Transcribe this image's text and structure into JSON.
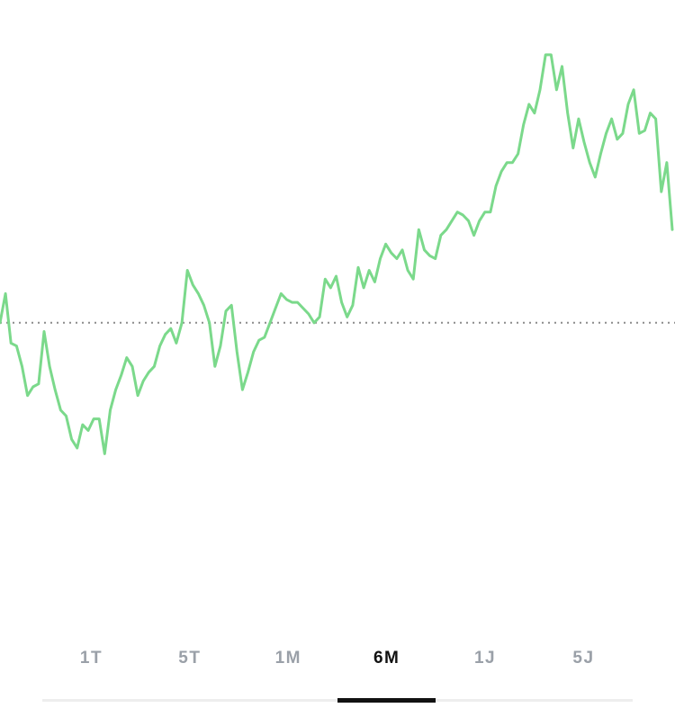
{
  "chart_data": {
    "type": "line",
    "title": "",
    "xlabel": "",
    "ylabel": "",
    "line_color": "#7bd98b",
    "baseline_color": "#8c8c8c",
    "baseline_value": 0,
    "ylim": [
      -60,
      100
    ],
    "values": [
      0,
      10,
      -7,
      -8,
      -15,
      -25,
      -22,
      -21,
      -3,
      -15,
      -23,
      -30,
      -32,
      -40,
      -43,
      -35,
      -37,
      -33,
      -33,
      -45,
      -30,
      -23,
      -18,
      -12,
      -15,
      -25,
      -20,
      -17,
      -15,
      -8,
      -4,
      -2,
      -7,
      0,
      18,
      13,
      10,
      6,
      0,
      -15,
      -8,
      4,
      6,
      -10,
      -23,
      -17,
      -10,
      -6,
      -5,
      0,
      5,
      10,
      8,
      7,
      7,
      5,
      3,
      0,
      2,
      15,
      12,
      16,
      7,
      2,
      6,
      19,
      12,
      18,
      14,
      22,
      27,
      24,
      22,
      25,
      18,
      15,
      32,
      25,
      23,
      22,
      30,
      32,
      35,
      38,
      37,
      35,
      30,
      35,
      38,
      38,
      47,
      52,
      55,
      55,
      58,
      68,
      75,
      72,
      80,
      92,
      92,
      80,
      88,
      72,
      60,
      70,
      62,
      55,
      50,
      58,
      65,
      70,
      63,
      65,
      75,
      80,
      65,
      66,
      72,
      70,
      45,
      55,
      32
    ]
  },
  "range_tabs": {
    "items": [
      {
        "label": "1T"
      },
      {
        "label": "5T"
      },
      {
        "label": "1M"
      },
      {
        "label": "6M"
      },
      {
        "label": "1J"
      },
      {
        "label": "5J"
      }
    ],
    "selected": "6M"
  }
}
